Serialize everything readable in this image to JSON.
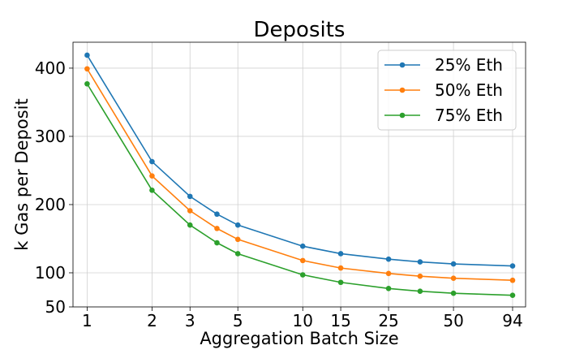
{
  "chart_data": {
    "type": "line",
    "title": "Deposits",
    "xlabel": "Aggregation Batch Size",
    "ylabel": "k Gas per Deposit",
    "x_scale": "log",
    "x": [
      1,
      2,
      3,
      4,
      5,
      10,
      15,
      25,
      35,
      50,
      94
    ],
    "xticks": [
      1,
      2,
      3,
      5,
      10,
      15,
      25,
      50,
      94
    ],
    "yticks": [
      50,
      100,
      200,
      300,
      400
    ],
    "xlim": [
      0.86,
      108
    ],
    "ylim": [
      50,
      438
    ],
    "grid": true,
    "legend_position": "top-right",
    "series": [
      {
        "name": "25% Eth",
        "color": "#1f77b4",
        "values": [
          419,
          263,
          212,
          186,
          170,
          139,
          128,
          120,
          116,
          113,
          110
        ]
      },
      {
        "name": "50% Eth",
        "color": "#ff7f0e",
        "values": [
          399,
          242,
          191,
          165,
          149,
          118,
          107,
          99,
          95,
          92,
          89
        ]
      },
      {
        "name": "75% Eth",
        "color": "#2ca02c",
        "values": [
          377,
          221,
          170,
          144,
          128,
          97,
          86,
          77,
          73,
          70,
          67
        ]
      }
    ]
  }
}
